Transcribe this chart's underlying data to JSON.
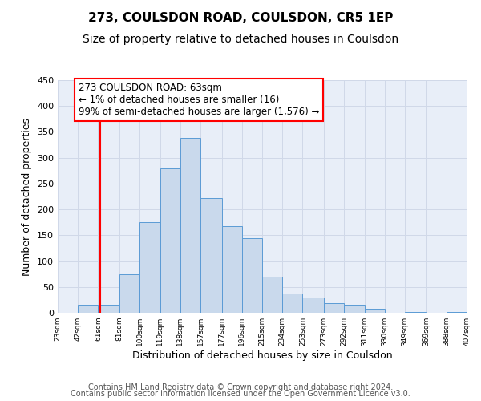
{
  "title": "273, COULSDON ROAD, COULSDON, CR5 1EP",
  "subtitle": "Size of property relative to detached houses in Coulsdon",
  "xlabel": "Distribution of detached houses by size in Coulsdon",
  "ylabel": "Number of detached properties",
  "bar_edges": [
    23,
    42,
    61,
    81,
    100,
    119,
    138,
    157,
    177,
    196,
    215,
    234,
    253,
    273,
    292,
    311,
    330,
    349,
    369,
    388,
    407
  ],
  "bar_heights": [
    0,
    15,
    15,
    75,
    175,
    280,
    338,
    222,
    167,
    145,
    70,
    38,
    30,
    18,
    16,
    7,
    0,
    2,
    0,
    2
  ],
  "bar_color": "#c9d9ec",
  "bar_edge_color": "#5b9bd5",
  "property_line_x": 63,
  "property_line_color": "red",
  "annotation_text": "273 COULSDON ROAD: 63sqm\n← 1% of detached houses are smaller (16)\n99% of semi-detached houses are larger (1,576) →",
  "annotation_box_color": "white",
  "annotation_box_edge_color": "red",
  "ylim": [
    0,
    450
  ],
  "xlim": [
    23,
    407
  ],
  "tick_labels": [
    "23sqm",
    "42sqm",
    "61sqm",
    "81sqm",
    "100sqm",
    "119sqm",
    "138sqm",
    "157sqm",
    "177sqm",
    "196sqm",
    "215sqm",
    "234sqm",
    "253sqm",
    "273sqm",
    "292sqm",
    "311sqm",
    "330sqm",
    "349sqm",
    "369sqm",
    "388sqm",
    "407sqm"
  ],
  "tick_positions": [
    23,
    42,
    61,
    81,
    100,
    119,
    138,
    157,
    177,
    196,
    215,
    234,
    253,
    273,
    292,
    311,
    330,
    349,
    369,
    388,
    407
  ],
  "yticks": [
    0,
    50,
    100,
    150,
    200,
    250,
    300,
    350,
    400,
    450
  ],
  "grid_color": "#d0d8e8",
  "bg_color": "#e8eef8",
  "footer_line1": "Contains HM Land Registry data © Crown copyright and database right 2024.",
  "footer_line2": "Contains public sector information licensed under the Open Government Licence v3.0.",
  "title_fontsize": 11,
  "subtitle_fontsize": 10,
  "annotation_fontsize": 8.5,
  "footer_fontsize": 7
}
